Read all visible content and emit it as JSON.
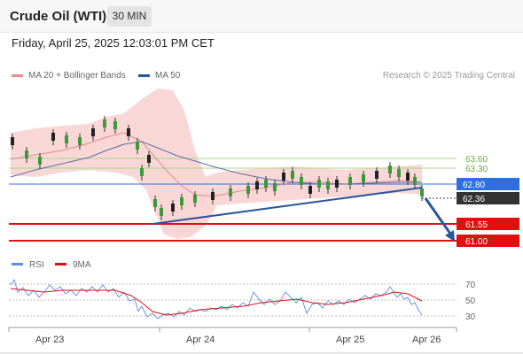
{
  "header": {
    "title": "Crude Oil (WTI)",
    "timeframe": "30 MIN"
  },
  "datetime": "Friday, April 25, 2025 12:03:01 PM CET",
  "legend": {
    "bollinger": "MA 20 + Bollinger Bands",
    "ma50": "MA 50",
    "credit": "Research © 2025 Trading Central"
  },
  "colors": {
    "bollinger": "#f08a8a",
    "ma50": "#2b579a",
    "resistance": "#7cbf5a",
    "support": "#e01010",
    "pivot": "#2f6fe0",
    "current": "#333333"
  },
  "levels": {
    "r2": "63.60",
    "r1": "63.30",
    "pivot": "62.80",
    "current": "62.36",
    "s1": "61.55",
    "s2": "61.00"
  },
  "rsi": {
    "legend_rsi": "RSI",
    "legend_ma": "9MA",
    "levels": [
      "70",
      "50",
      "30"
    ]
  },
  "xaxis": [
    "Apr 23",
    "Apr 24",
    "Apr 25",
    "Apr 26"
  ]
}
